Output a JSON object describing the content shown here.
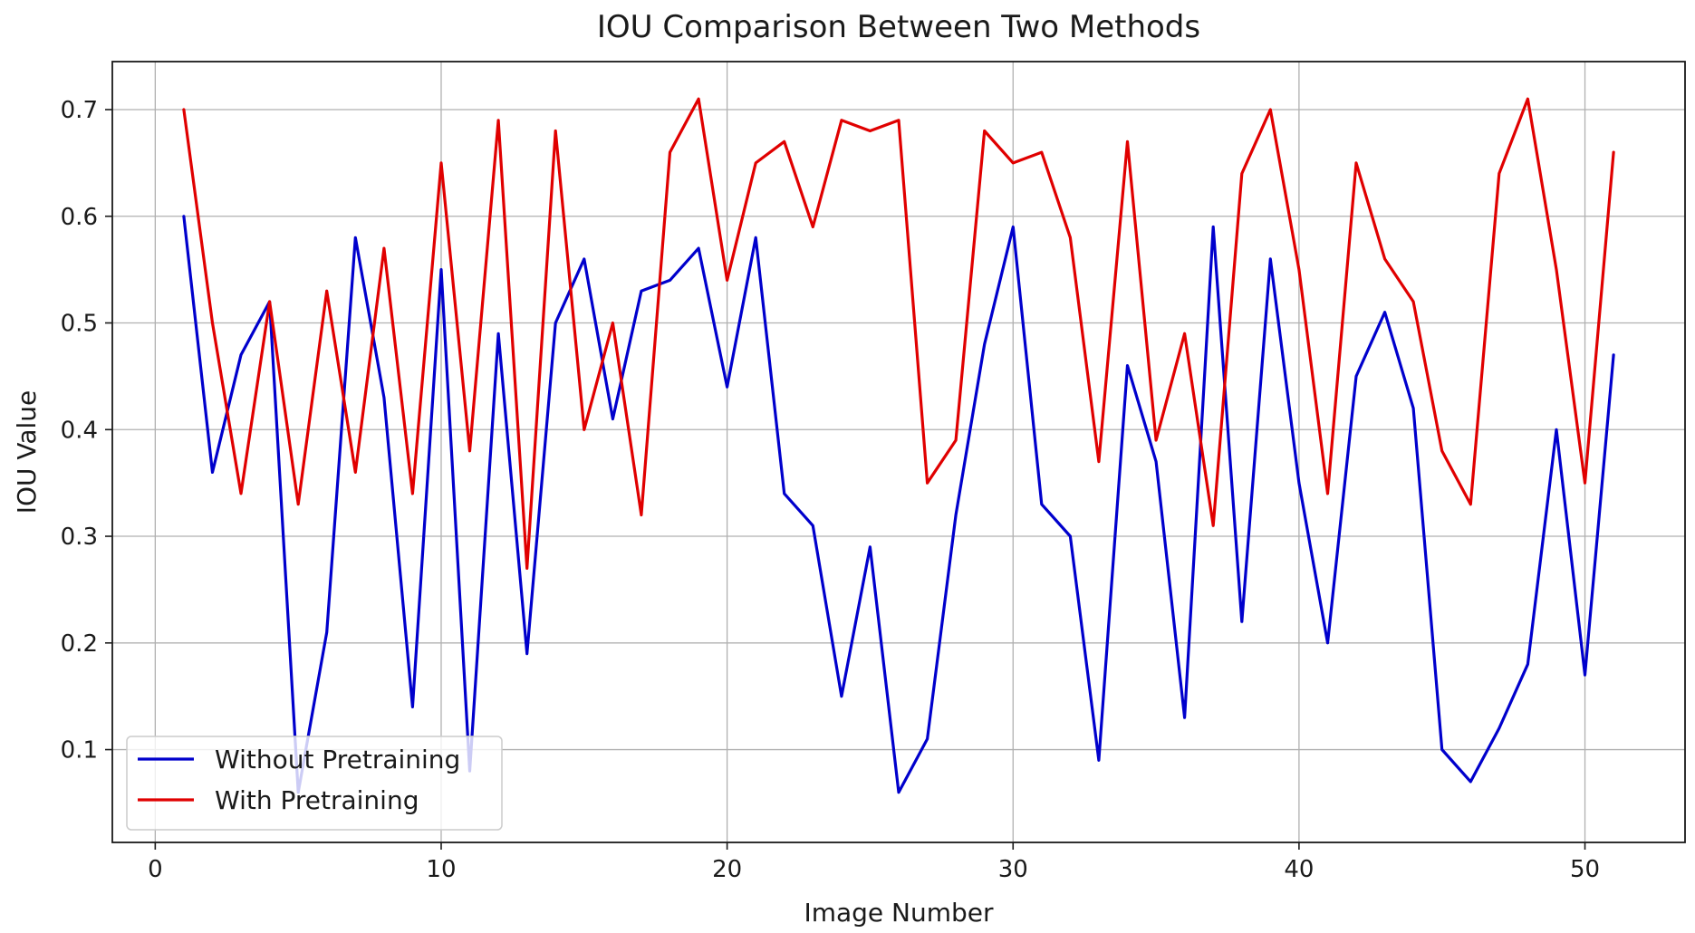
{
  "chart_data": {
    "type": "line",
    "title": "IOU Comparison Between Two Methods",
    "xlabel": "Image Number",
    "ylabel": "IOU Value",
    "xlim": [
      -1.5,
      53.5
    ],
    "ylim": [
      0.013,
      0.745
    ],
    "xticks": [
      0,
      10,
      20,
      30,
      40,
      50
    ],
    "yticks": [
      0.1,
      0.2,
      0.3,
      0.4,
      0.5,
      0.6,
      0.7
    ],
    "xtick_labels": [
      "0",
      "10",
      "20",
      "30",
      "40",
      "50"
    ],
    "ytick_labels": [
      "0.1",
      "0.2",
      "0.3",
      "0.4",
      "0.5",
      "0.6",
      "0.7"
    ],
    "grid": true,
    "legend_position": "lower-left",
    "x": [
      1,
      2,
      3,
      4,
      5,
      6,
      7,
      8,
      9,
      10,
      11,
      12,
      13,
      14,
      15,
      16,
      17,
      18,
      19,
      20,
      21,
      22,
      23,
      24,
      25,
      26,
      27,
      28,
      29,
      30,
      31,
      32,
      33,
      34,
      35,
      36,
      37,
      38,
      39,
      40,
      41,
      42,
      43,
      44,
      45,
      46,
      47,
      48,
      49,
      50,
      51
    ],
    "series": [
      {
        "name": "Without Pretraining",
        "color": "#0000cc",
        "values": [
          0.6,
          0.36,
          0.47,
          0.52,
          0.06,
          0.21,
          0.58,
          0.43,
          0.14,
          0.55,
          0.08,
          0.49,
          0.19,
          0.5,
          0.56,
          0.41,
          0.53,
          0.54,
          0.57,
          0.44,
          0.58,
          0.34,
          0.31,
          0.15,
          0.29,
          0.06,
          0.11,
          0.32,
          0.48,
          0.59,
          0.33,
          0.3,
          0.09,
          0.46,
          0.37,
          0.13,
          0.59,
          0.22,
          0.56,
          0.35,
          0.2,
          0.45,
          0.51,
          0.42,
          0.1,
          0.07,
          0.12,
          0.18,
          0.4,
          0.17,
          0.47
        ]
      },
      {
        "name": "With Pretraining",
        "color": "#e00000",
        "values": [
          0.7,
          0.5,
          0.34,
          0.52,
          0.33,
          0.53,
          0.36,
          0.57,
          0.34,
          0.65,
          0.38,
          0.69,
          0.27,
          0.68,
          0.4,
          0.5,
          0.32,
          0.66,
          0.71,
          0.54,
          0.65,
          0.67,
          0.59,
          0.69,
          0.68,
          0.69,
          0.35,
          0.39,
          0.68,
          0.65,
          0.66,
          0.58,
          0.37,
          0.67,
          0.39,
          0.49,
          0.31,
          0.64,
          0.7,
          0.55,
          0.34,
          0.65,
          0.56,
          0.52,
          0.38,
          0.33,
          0.64,
          0.71,
          0.55,
          0.35,
          0.66
        ]
      }
    ]
  }
}
